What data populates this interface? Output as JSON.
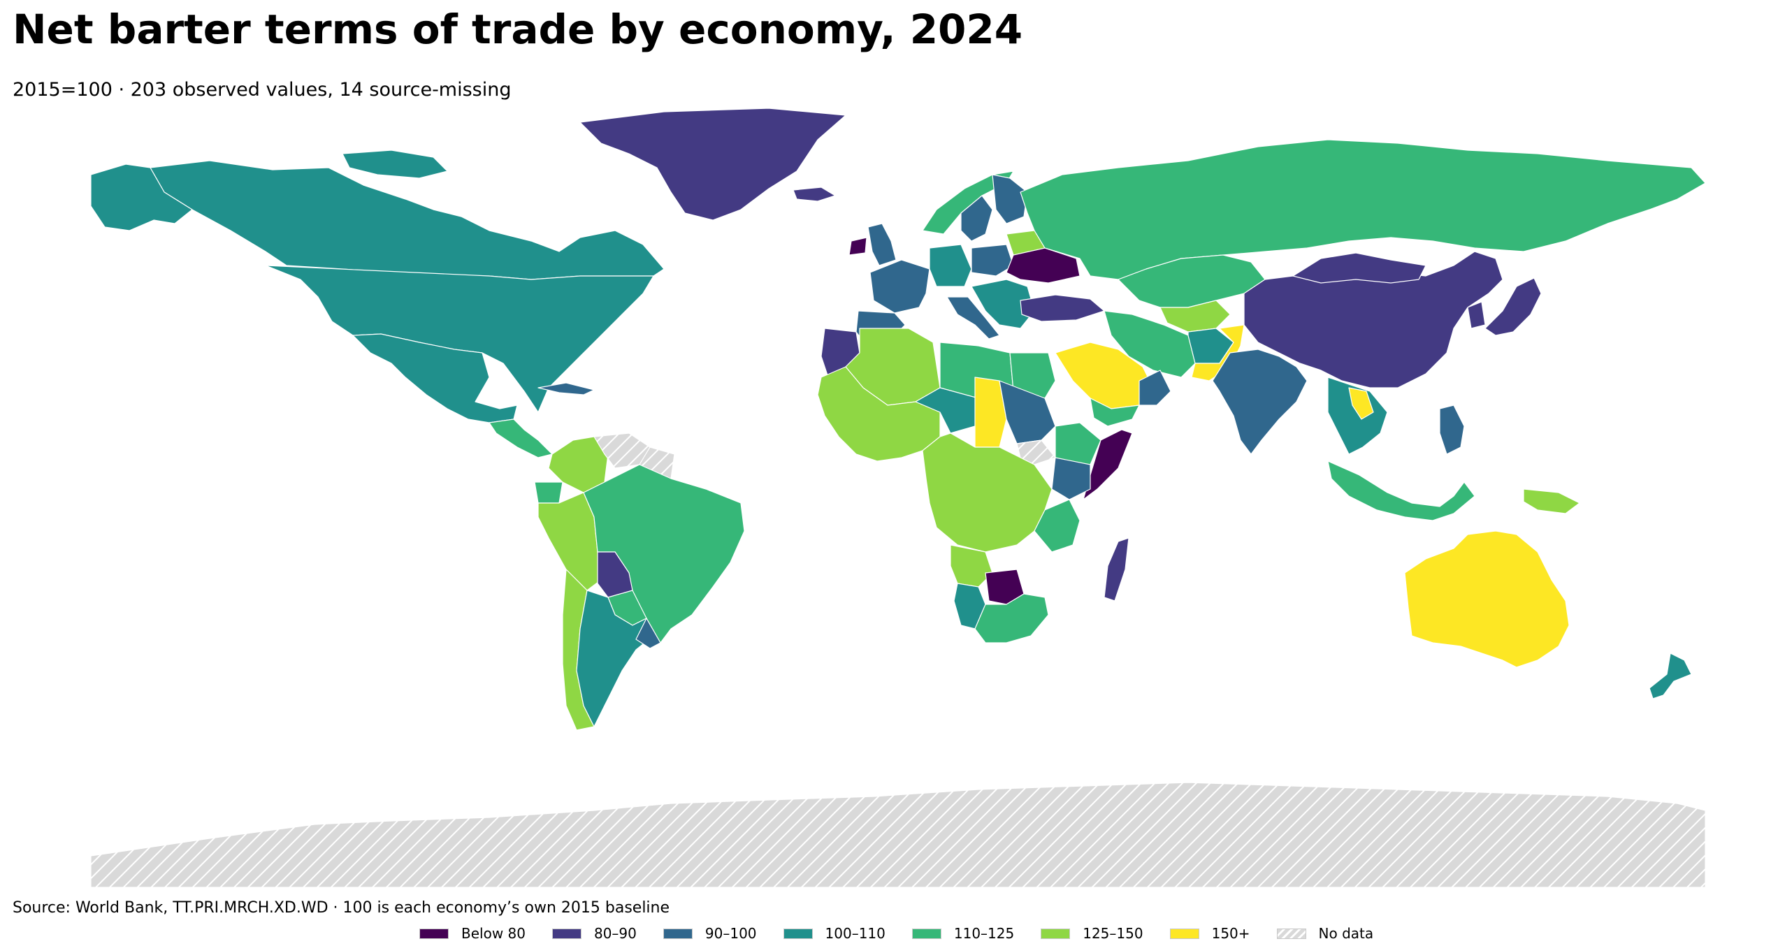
{
  "header": {
    "title": "Net barter terms of trade by economy, 2024",
    "subtitle": "2015=100 · 203 observed values, 14 source-missing"
  },
  "footer": {
    "source": "Source: World Bank, TT.PRI.MRCH.XD.WD · 100 is each economy’s own 2015 baseline"
  },
  "legend": {
    "items": [
      {
        "label": "Below 80",
        "color": "#440154"
      },
      {
        "label": "80–90",
        "color": "#433a83"
      },
      {
        "label": "90–100",
        "color": "#30678d"
      },
      {
        "label": "100–110",
        "color": "#20908c"
      },
      {
        "label": "110–125",
        "color": "#36b778"
      },
      {
        "label": "125–150",
        "color": "#8fd744"
      },
      {
        "label": "150+",
        "color": "#fde724"
      },
      {
        "label": "No data",
        "color": "#d9d9d9",
        "pattern": "hatch"
      }
    ]
  },
  "map_data": {
    "regions": [
      {
        "name": "Canada",
        "bin": 3
      },
      {
        "name": "United States",
        "bin": 3
      },
      {
        "name": "Alaska",
        "bin": 3
      },
      {
        "name": "Greenland",
        "bin": 1
      },
      {
        "name": "Iceland",
        "bin": 1
      },
      {
        "name": "Mexico",
        "bin": 3
      },
      {
        "name": "Central America",
        "bin": 4
      },
      {
        "name": "Cuba",
        "bin": 2
      },
      {
        "name": "Colombia",
        "bin": 5
      },
      {
        "name": "Venezuela",
        "bin": 7
      },
      {
        "name": "Guyana",
        "bin": 7
      },
      {
        "name": "Ecuador",
        "bin": 4
      },
      {
        "name": "Peru",
        "bin": 5
      },
      {
        "name": "Brazil",
        "bin": 4
      },
      {
        "name": "Bolivia",
        "bin": 1
      },
      {
        "name": "Paraguay",
        "bin": 4
      },
      {
        "name": "Chile",
        "bin": 5
      },
      {
        "name": "Argentina",
        "bin": 3
      },
      {
        "name": "Uruguay",
        "bin": 2
      },
      {
        "name": "Ireland",
        "bin": 0
      },
      {
        "name": "United Kingdom",
        "bin": 2
      },
      {
        "name": "France",
        "bin": 2
      },
      {
        "name": "Spain",
        "bin": 2
      },
      {
        "name": "Germany",
        "bin": 3
      },
      {
        "name": "Italy",
        "bin": 2
      },
      {
        "name": "Norway",
        "bin": 4
      },
      {
        "name": "Sweden",
        "bin": 2
      },
      {
        "name": "Finland",
        "bin": 2
      },
      {
        "name": "Poland",
        "bin": 2
      },
      {
        "name": "Belarus",
        "bin": 5
      },
      {
        "name": "Ukraine",
        "bin": 0
      },
      {
        "name": "Balkans",
        "bin": 3
      },
      {
        "name": "Turkey",
        "bin": 1
      },
      {
        "name": "Russia",
        "bin": 4
      },
      {
        "name": "Kazakhstan",
        "bin": 4
      },
      {
        "name": "Central Asia",
        "bin": 5
      },
      {
        "name": "Iran",
        "bin": 4
      },
      {
        "name": "Afghanistan",
        "bin": 3
      },
      {
        "name": "Pakistan",
        "bin": 6
      },
      {
        "name": "India",
        "bin": 2
      },
      {
        "name": "China",
        "bin": 1
      },
      {
        "name": "Mongolia",
        "bin": 1
      },
      {
        "name": "Japan",
        "bin": 1
      },
      {
        "name": "Korea",
        "bin": 1
      },
      {
        "name": "Saudi Arabia",
        "bin": 6
      },
      {
        "name": "Yemen",
        "bin": 4
      },
      {
        "name": "Oman",
        "bin": 2
      },
      {
        "name": "Morocco",
        "bin": 1
      },
      {
        "name": "Algeria",
        "bin": 5
      },
      {
        "name": "Libya",
        "bin": 4
      },
      {
        "name": "Egypt",
        "bin": 4
      },
      {
        "name": "West Africa",
        "bin": 5
      },
      {
        "name": "Niger",
        "bin": 3
      },
      {
        "name": "Chad",
        "bin": 6
      },
      {
        "name": "Sudan",
        "bin": 2
      },
      {
        "name": "South Sudan",
        "bin": 7
      },
      {
        "name": "Ethiopia",
        "bin": 4
      },
      {
        "name": "Somalia",
        "bin": 0
      },
      {
        "name": "Kenya",
        "bin": 2
      },
      {
        "name": "Central Africa",
        "bin": 5
      },
      {
        "name": "Tanzania",
        "bin": 4
      },
      {
        "name": "Angola",
        "bin": 5
      },
      {
        "name": "Namibia",
        "bin": 3
      },
      {
        "name": "Botswana",
        "bin": 0
      },
      {
        "name": "South Africa",
        "bin": 4
      },
      {
        "name": "Madagascar",
        "bin": 1
      },
      {
        "name": "Southeast Asia",
        "bin": 3
      },
      {
        "name": "Laos",
        "bin": 6
      },
      {
        "name": "Indonesia",
        "bin": 4
      },
      {
        "name": "Philippines",
        "bin": 2
      },
      {
        "name": "Papua New Guinea",
        "bin": 5
      },
      {
        "name": "Australia",
        "bin": 6
      },
      {
        "name": "New Zealand",
        "bin": 3
      },
      {
        "name": "Antarctica",
        "bin": 7
      }
    ]
  }
}
